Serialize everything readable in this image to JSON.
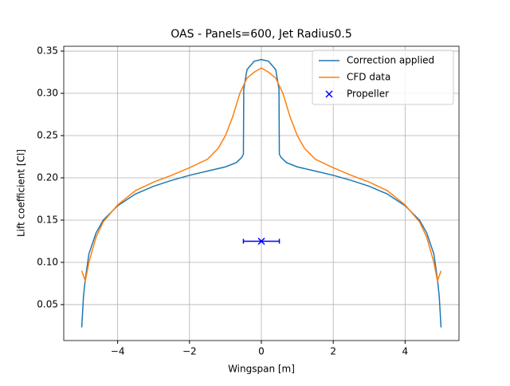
{
  "chart_data": {
    "type": "line",
    "title": "OAS - Panels=600, Jet Radius0.5",
    "x_label": "Wingspan [m]",
    "y_label": "Lift coefficient [Cl]",
    "xlim": [
      -5.5,
      5.5
    ],
    "ylim": [
      0.0075,
      0.3557
    ],
    "xticks": [
      {
        "value": -4,
        "label": "−4"
      },
      {
        "value": -2,
        "label": "−2"
      },
      0,
      2,
      4
    ],
    "yticks": [
      0.05,
      {
        "value": 0.1,
        "label": "0.10"
      },
      0.15,
      {
        "value": 0.2,
        "label": "0.20"
      },
      0.25,
      {
        "value": 0.3,
        "label": "0.30"
      },
      0.35
    ],
    "grid": true,
    "legend": "upper right",
    "series": [
      {
        "name": "Correction applied",
        "color": "#1f77b4",
        "x": [
          -5,
          -4.95,
          -4.9,
          -4.8,
          -4.6,
          -4.4,
          -4,
          -3.5,
          -3,
          -2.5,
          -2,
          -1.5,
          -1,
          -0.7,
          -0.55,
          -0.5,
          -0.49,
          -0.4,
          -0.2,
          0,
          0.2,
          0.4,
          0.49,
          0.5,
          0.55,
          0.7,
          1,
          1.5,
          2,
          2.5,
          3,
          3.5,
          4,
          4.4,
          4.6,
          4.8,
          4.9,
          4.95,
          5
        ],
        "values": [
          0.023,
          0.06,
          0.08,
          0.11,
          0.135,
          0.15,
          0.167,
          0.181,
          0.19,
          0.197,
          0.203,
          0.208,
          0.213,
          0.218,
          0.224,
          0.228,
          0.305,
          0.328,
          0.338,
          0.34,
          0.338,
          0.328,
          0.305,
          0.228,
          0.224,
          0.218,
          0.213,
          0.208,
          0.203,
          0.197,
          0.19,
          0.181,
          0.167,
          0.15,
          0.135,
          0.11,
          0.08,
          0.06,
          0.023
        ]
      },
      {
        "name": "CFD data",
        "color": "#ff7f0e",
        "x": [
          -5,
          -4.9,
          -4.8,
          -4.6,
          -4.4,
          -4,
          -3.5,
          -3,
          -2.5,
          -2,
          -1.5,
          -1.2,
          -1,
          -0.8,
          -0.6,
          -0.4,
          -0.2,
          0,
          0.2,
          0.4,
          0.6,
          0.8,
          1,
          1.2,
          1.5,
          2,
          2.5,
          3,
          3.5,
          4,
          4.4,
          4.6,
          4.8,
          4.9,
          5
        ],
        "values": [
          0.09,
          0.078,
          0.1,
          0.13,
          0.148,
          0.168,
          0.185,
          0.195,
          0.203,
          0.212,
          0.222,
          0.235,
          0.25,
          0.272,
          0.3,
          0.318,
          0.325,
          0.33,
          0.325,
          0.318,
          0.3,
          0.272,
          0.25,
          0.235,
          0.222,
          0.212,
          0.203,
          0.195,
          0.185,
          0.168,
          0.148,
          0.13,
          0.1,
          0.078,
          0.09
        ]
      }
    ],
    "points": {
      "name": "Propeller",
      "color": "#0000ff",
      "x": [
        0
      ],
      "values": [
        0.125
      ],
      "xerr": [
        0.5
      ]
    }
  }
}
